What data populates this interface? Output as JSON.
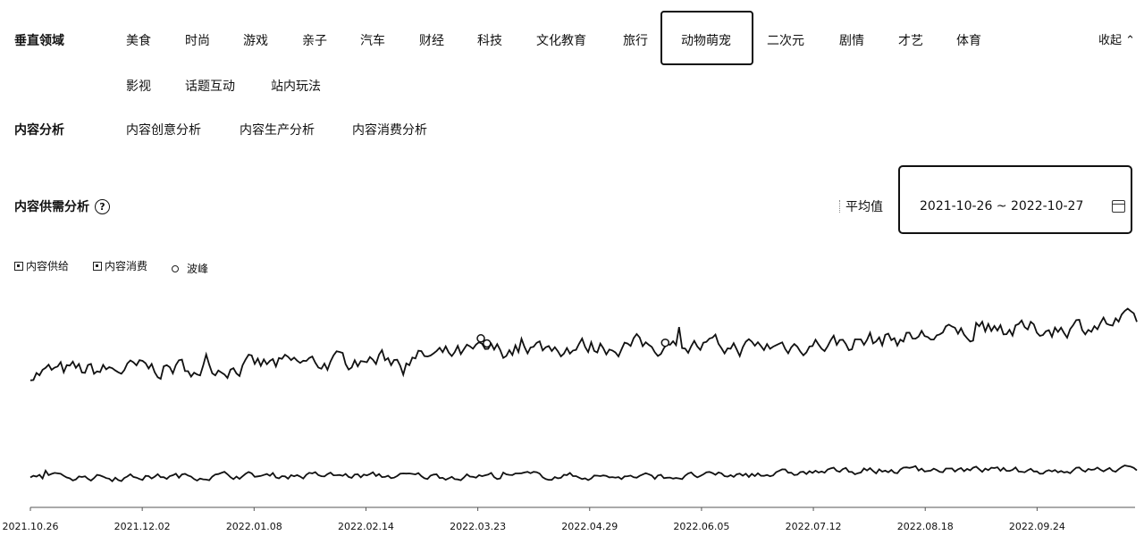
{
  "filters": {
    "vertical_label": "垂直领域",
    "categories": [
      {
        "label": "美食"
      },
      {
        "label": "时尚"
      },
      {
        "label": "游戏"
      },
      {
        "label": "亲子"
      },
      {
        "label": "汽车"
      },
      {
        "label": "财经"
      },
      {
        "label": "科技"
      },
      {
        "label": "文化教育"
      },
      {
        "label": "旅行"
      },
      {
        "label": "动物萌宠",
        "selected": true
      },
      {
        "label": "二次元"
      },
      {
        "label": "剧情"
      },
      {
        "label": "才艺"
      },
      {
        "label": "体育"
      },
      {
        "label": "影视"
      },
      {
        "label": "话题互动"
      },
      {
        "label": "站内玩法"
      }
    ],
    "collapse_label": "收起",
    "analysis_label": "内容分析",
    "analysis_tabs": [
      "内容创意分析",
      "内容生产分析",
      "内容消费分析"
    ]
  },
  "section": {
    "title": "内容供需分析",
    "help_icon": "question-circle-icon",
    "average_label": "平均值",
    "date_range": "2021-10-26 ~ 2022-10-27",
    "calendar_icon": "calendar-icon"
  },
  "legend": {
    "supply": "内容供给",
    "consumption": "内容消费",
    "peak": "波峰"
  },
  "chart_data": {
    "type": "line",
    "x_ticks": [
      "2021.10.26",
      "2021.12.02",
      "2022.01.08",
      "2022.02.14",
      "2022.03.23",
      "2022.04.29",
      "2022.06.05",
      "2022.07.12",
      "2022.08.18",
      "2022.09.24"
    ],
    "x_range": [
      "2021-10-26",
      "2022-10-27"
    ],
    "series": [
      {
        "name": "内容供给",
        "trend": [
          0.3,
          0.33,
          0.36,
          0.4,
          0.46,
          0.55,
          0.58,
          0.55,
          0.6,
          0.68,
          0.74,
          0.82
        ],
        "noise": 0.08
      },
      {
        "name": "内容消费",
        "trend": [
          0.2,
          0.2,
          0.22,
          0.22,
          0.21,
          0.22,
          0.2,
          0.22,
          0.28,
          0.3,
          0.29,
          0.31
        ],
        "noise": 0.04
      }
    ],
    "peaks": [
      {
        "series": "内容供给",
        "x": "2022-03-24"
      },
      {
        "series": "内容供给",
        "x": "2022-03-26"
      },
      {
        "series": "内容供给",
        "x": "2022-05-24"
      }
    ],
    "grid": false
  }
}
